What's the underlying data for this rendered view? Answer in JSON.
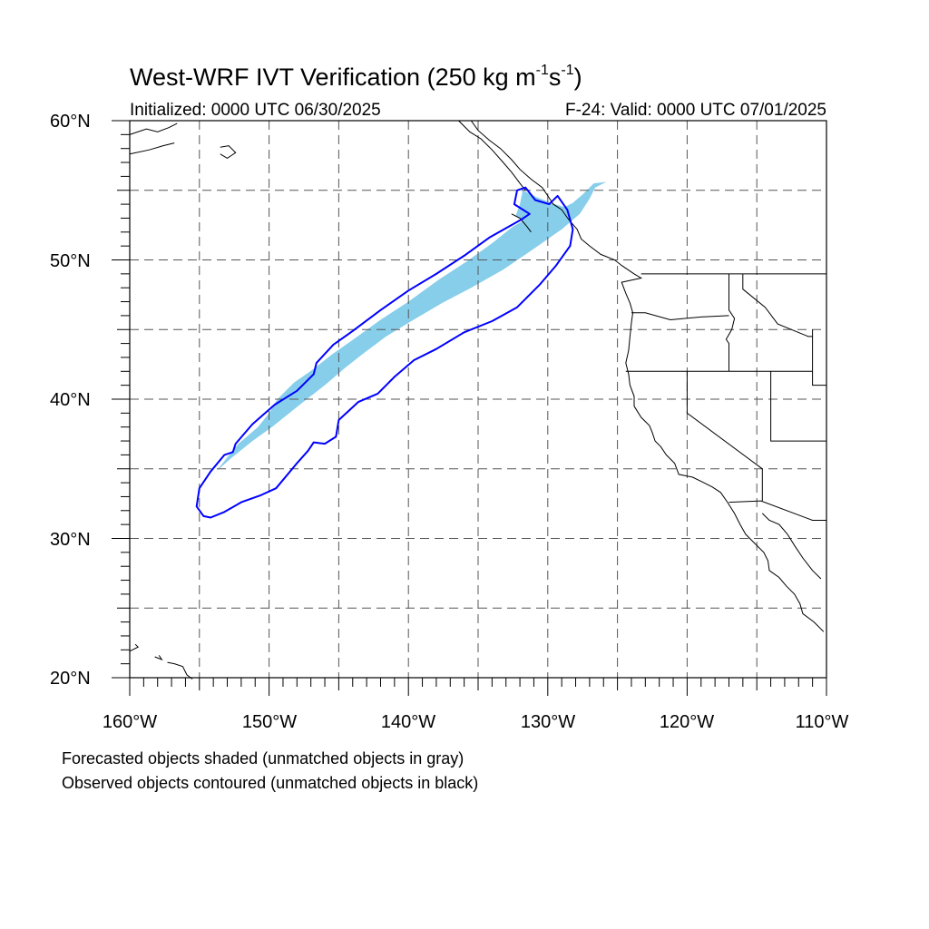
{
  "header": {
    "title_main": "West-WRF IVT Verification (250 kg m",
    "title_sup1": "-1",
    "title_mid": "s",
    "title_sup2": "-1",
    "title_end": ")",
    "initialized": "Initialized: 0000 UTC 06/30/2025",
    "valid": "F-24: Valid: 0000 UTC 07/01/2025"
  },
  "axes": {
    "lat_labels": [
      "60°N",
      "50°N",
      "40°N",
      "30°N",
      "20°N"
    ],
    "lon_labels": [
      "160°W",
      "150°W",
      "140°W",
      "130°W",
      "120°W",
      "110°W"
    ],
    "lat_range": [
      20,
      60
    ],
    "lon_range": [
      -160,
      -110
    ],
    "grid_spacing_deg": 5,
    "grid_style": "dashed"
  },
  "legend": {
    "line1": "Forecasted objects shaded (unmatched objects in gray)",
    "line2": "Observed objects contoured (unmatched objects in black)"
  },
  "colors": {
    "forecast_fill": "#87ceeb",
    "observed_contour": "#0000ff",
    "coastline": "#000000",
    "grid": "#555555"
  },
  "objects": {
    "forecast_shaded": {
      "matched": true,
      "outline_lonlat": [
        [
          -154.6,
          33.7
        ],
        [
          -153.8,
          34.8
        ],
        [
          -152.8,
          35.7
        ],
        [
          -151.2,
          37.0
        ],
        [
          -149.8,
          38.0
        ],
        [
          -147.8,
          39.6
        ],
        [
          -146.0,
          41.0
        ],
        [
          -144.6,
          42.2
        ],
        [
          -143.2,
          43.3
        ],
        [
          -141.6,
          44.5
        ],
        [
          -139.8,
          45.6
        ],
        [
          -137.6,
          46.9
        ],
        [
          -135.5,
          48.0
        ],
        [
          -133.2,
          49.3
        ],
        [
          -131.0,
          50.8
        ],
        [
          -129.0,
          52.2
        ],
        [
          -127.7,
          53.3
        ],
        [
          -127.0,
          54.4
        ],
        [
          -126.6,
          55.2
        ],
        [
          -125.8,
          55.6
        ],
        [
          -126.7,
          55.5
        ],
        [
          -127.5,
          54.7
        ],
        [
          -128.2,
          54.1
        ],
        [
          -128.8,
          53.8
        ],
        [
          -129.5,
          54.0
        ],
        [
          -130.8,
          54.5
        ],
        [
          -131.8,
          55.0
        ],
        [
          -132.0,
          54.0
        ],
        [
          -132.3,
          53.2
        ],
        [
          -131.8,
          52.8
        ],
        [
          -132.5,
          52.4
        ],
        [
          -134.0,
          51.2
        ],
        [
          -135.8,
          49.9
        ],
        [
          -137.8,
          48.6
        ],
        [
          -140.0,
          47.0
        ],
        [
          -142.0,
          45.7
        ],
        [
          -143.8,
          44.4
        ],
        [
          -145.5,
          43.2
        ],
        [
          -146.9,
          42.1
        ],
        [
          -148.2,
          41.2
        ],
        [
          -149.4,
          40.0
        ],
        [
          -150.0,
          39.0
        ],
        [
          -150.8,
          38.0
        ],
        [
          -152.2,
          36.8
        ],
        [
          -153.5,
          35.2
        ]
      ]
    },
    "observed_contour": {
      "matched": true,
      "outline_lonlat": [
        [
          -154.7,
          31.6
        ],
        [
          -154.2,
          31.5
        ],
        [
          -153.2,
          31.9
        ],
        [
          -152.0,
          32.6
        ],
        [
          -150.6,
          33.1
        ],
        [
          -149.5,
          33.6
        ],
        [
          -148.0,
          35.4
        ],
        [
          -147.2,
          36.3
        ],
        [
          -146.8,
          36.9
        ],
        [
          -146.0,
          36.8
        ],
        [
          -145.2,
          37.3
        ],
        [
          -145.0,
          38.5
        ],
        [
          -143.6,
          39.8
        ],
        [
          -142.2,
          40.4
        ],
        [
          -141.0,
          41.6
        ],
        [
          -139.6,
          42.8
        ],
        [
          -138.0,
          43.6
        ],
        [
          -136.0,
          44.8
        ],
        [
          -134.0,
          45.6
        ],
        [
          -132.2,
          46.6
        ],
        [
          -130.6,
          48.2
        ],
        [
          -129.4,
          49.6
        ],
        [
          -128.4,
          51.0
        ],
        [
          -128.2,
          52.2
        ],
        [
          -128.6,
          53.6
        ],
        [
          -129.3,
          54.6
        ],
        [
          -129.9,
          54.0
        ],
        [
          -130.9,
          54.3
        ],
        [
          -131.6,
          55.2
        ],
        [
          -132.2,
          55.0
        ],
        [
          -132.4,
          54.0
        ],
        [
          -131.3,
          53.3
        ],
        [
          -131.9,
          52.9
        ],
        [
          -134.2,
          51.6
        ],
        [
          -136.0,
          50.3
        ],
        [
          -138.0,
          49.0
        ],
        [
          -140.0,
          47.8
        ],
        [
          -142.0,
          46.4
        ],
        [
          -144.0,
          44.9
        ],
        [
          -145.4,
          43.9
        ],
        [
          -146.6,
          42.6
        ],
        [
          -146.8,
          41.8
        ],
        [
          -148.0,
          40.6
        ],
        [
          -149.6,
          39.6
        ],
        [
          -151.2,
          38.2
        ],
        [
          -152.4,
          36.8
        ],
        [
          -152.6,
          36.2
        ],
        [
          -153.2,
          36.0
        ],
        [
          -154.2,
          34.8
        ],
        [
          -155.0,
          33.6
        ],
        [
          -155.2,
          32.3
        ]
      ]
    }
  }
}
